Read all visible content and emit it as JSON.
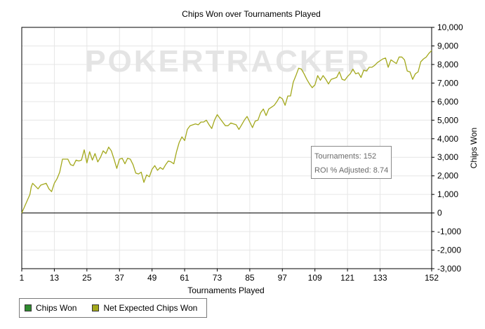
{
  "chart_data": {
    "type": "line",
    "title": "Chips Won over Tournaments Played",
    "xlabel": "Tournaments Played",
    "ylabel": "Chips Won",
    "xlim": [
      1,
      152
    ],
    "ylim": [
      -3000,
      10000
    ],
    "x_ticks": [
      1,
      13,
      25,
      37,
      49,
      61,
      73,
      85,
      97,
      109,
      121,
      133,
      152
    ],
    "y_ticks": [
      -3000,
      -2000,
      -1000,
      0,
      1000,
      2000,
      3000,
      4000,
      5000,
      6000,
      7000,
      8000,
      9000,
      10000
    ],
    "y_tick_labels": [
      "-3,000",
      "-2,000",
      "-1,000",
      "0",
      "1,000",
      "2,000",
      "3,000",
      "4,000",
      "5,000",
      "6,000",
      "7,000",
      "8,000",
      "9,000",
      "10,000"
    ],
    "grid": true,
    "y_axis_position": "right",
    "legend_position": "bottom-left",
    "series": [
      {
        "name": "Net Expected Chips Won",
        "color": "#a3a81c",
        "points": [
          [
            1,
            0
          ],
          [
            4,
            1000
          ],
          [
            4.5,
            1400
          ],
          [
            5,
            1600
          ],
          [
            6,
            1450
          ],
          [
            7,
            1300
          ],
          [
            8,
            1500
          ],
          [
            10,
            1600
          ],
          [
            11,
            1300
          ],
          [
            12,
            1150
          ],
          [
            13,
            1600
          ],
          [
            14,
            1850
          ],
          [
            15,
            2200
          ],
          [
            16,
            2900
          ],
          [
            18,
            2900
          ],
          [
            19,
            2600
          ],
          [
            20,
            2550
          ],
          [
            21,
            2850
          ],
          [
            22,
            2800
          ],
          [
            23,
            2850
          ],
          [
            24,
            3400
          ],
          [
            25,
            2700
          ],
          [
            26,
            3300
          ],
          [
            27,
            2850
          ],
          [
            28,
            3200
          ],
          [
            29,
            2750
          ],
          [
            30,
            3000
          ],
          [
            31,
            3350
          ],
          [
            32,
            3200
          ],
          [
            33,
            3550
          ],
          [
            34,
            3350
          ],
          [
            35,
            2900
          ],
          [
            36,
            2400
          ],
          [
            37,
            2900
          ],
          [
            38,
            2950
          ],
          [
            39,
            2650
          ],
          [
            40,
            2950
          ],
          [
            41,
            2900
          ],
          [
            42,
            2600
          ],
          [
            43,
            2150
          ],
          [
            44,
            2100
          ],
          [
            45,
            2200
          ],
          [
            46,
            1650
          ],
          [
            47,
            2050
          ],
          [
            48,
            1950
          ],
          [
            49,
            2350
          ],
          [
            50,
            2550
          ],
          [
            51,
            2300
          ],
          [
            52,
            2450
          ],
          [
            53,
            2350
          ],
          [
            54,
            2600
          ],
          [
            55,
            2800
          ],
          [
            56,
            2750
          ],
          [
            57,
            2650
          ],
          [
            58,
            3300
          ],
          [
            59,
            3800
          ],
          [
            60,
            4100
          ],
          [
            61,
            3900
          ],
          [
            62,
            4500
          ],
          [
            63,
            4700
          ],
          [
            65,
            4800
          ],
          [
            66,
            4750
          ],
          [
            67,
            4900
          ],
          [
            68,
            4900
          ],
          [
            69,
            5000
          ],
          [
            70,
            4750
          ],
          [
            71,
            4550
          ],
          [
            72,
            5000
          ],
          [
            73,
            5300
          ],
          [
            74,
            5100
          ],
          [
            75,
            4900
          ],
          [
            76,
            4700
          ],
          [
            77,
            4700
          ],
          [
            78,
            4850
          ],
          [
            79,
            4800
          ],
          [
            80,
            4750
          ],
          [
            81,
            4500
          ],
          [
            82,
            4750
          ],
          [
            83,
            5000
          ],
          [
            84,
            5200
          ],
          [
            85,
            4900
          ],
          [
            86,
            4600
          ],
          [
            87,
            4950
          ],
          [
            88,
            5000
          ],
          [
            89,
            5400
          ],
          [
            90,
            5600
          ],
          [
            91,
            5250
          ],
          [
            92,
            5600
          ],
          [
            93,
            5700
          ],
          [
            94,
            5800
          ],
          [
            95,
            6000
          ],
          [
            96,
            6250
          ],
          [
            97,
            6150
          ],
          [
            98,
            5800
          ],
          [
            99,
            6300
          ],
          [
            100,
            6300
          ],
          [
            101,
            7050
          ],
          [
            102,
            7400
          ],
          [
            103,
            7800
          ],
          [
            104,
            7750
          ],
          [
            105,
            7500
          ],
          [
            106,
            7200
          ],
          [
            107,
            6950
          ],
          [
            108,
            6750
          ],
          [
            109,
            6900
          ],
          [
            110,
            7400
          ],
          [
            111,
            7150
          ],
          [
            112,
            7400
          ],
          [
            113,
            7200
          ],
          [
            114,
            6950
          ],
          [
            115,
            7200
          ],
          [
            116,
            7250
          ],
          [
            117,
            7300
          ],
          [
            118,
            7600
          ],
          [
            119,
            7200
          ],
          [
            120,
            7150
          ],
          [
            121,
            7350
          ],
          [
            122,
            7500
          ],
          [
            123,
            7750
          ],
          [
            124,
            7500
          ],
          [
            125,
            7550
          ],
          [
            126,
            7300
          ],
          [
            127,
            7700
          ],
          [
            128,
            7650
          ],
          [
            129,
            7850
          ],
          [
            130,
            7850
          ],
          [
            131,
            7950
          ],
          [
            132,
            8100
          ],
          [
            133,
            8200
          ],
          [
            134,
            8300
          ],
          [
            135,
            8350
          ],
          [
            136,
            7850
          ],
          [
            137,
            8250
          ],
          [
            138,
            8150
          ],
          [
            139,
            8050
          ],
          [
            140,
            8400
          ],
          [
            141,
            8400
          ],
          [
            142,
            8250
          ],
          [
            143,
            7650
          ],
          [
            144,
            7600
          ],
          [
            145,
            7200
          ],
          [
            146,
            7500
          ],
          [
            147,
            7600
          ],
          [
            148,
            8150
          ],
          [
            149,
            8300
          ],
          [
            150,
            8400
          ],
          [
            151,
            8600
          ],
          [
            152,
            8750
          ]
        ]
      }
    ],
    "legend": [
      {
        "name": "Chips Won",
        "color": "#2e8b2e"
      },
      {
        "name": "Net Expected Chips Won",
        "color": "#a3a81c"
      }
    ],
    "tooltip": {
      "tournaments_label": "Tournaments:",
      "tournaments_value": "152",
      "roi_label": "ROI % Adjusted:",
      "roi_value": "8.74"
    },
    "watermark": "POKERTRACKER"
  }
}
